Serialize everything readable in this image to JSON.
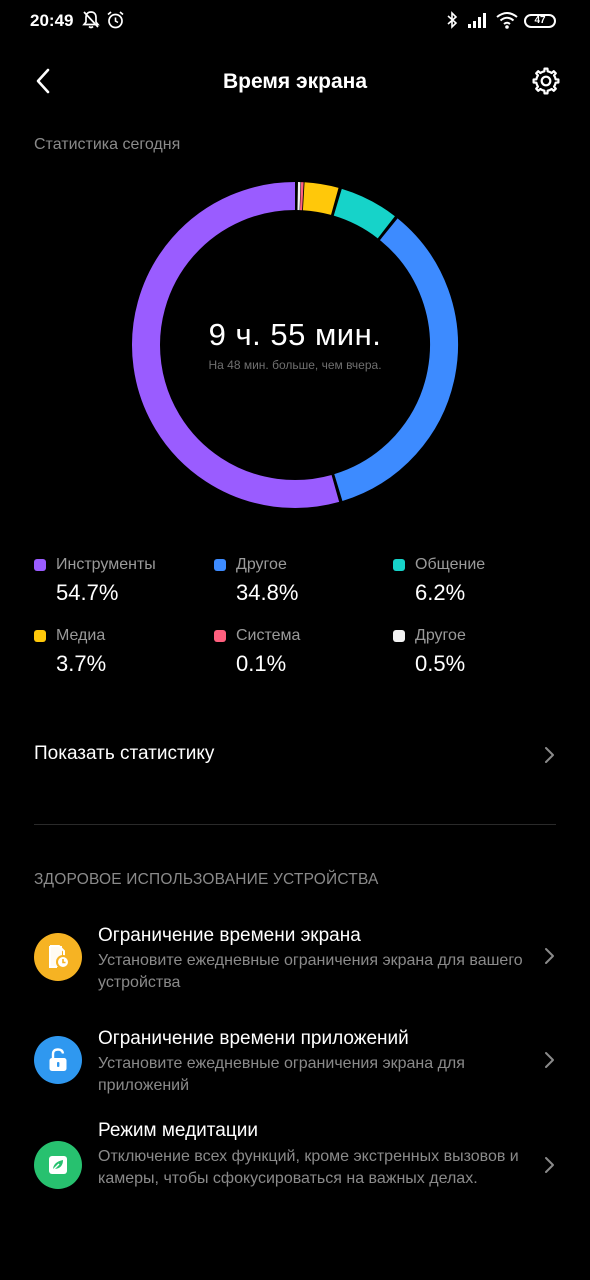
{
  "status_bar": {
    "time": "20:49",
    "icons": [
      "bell-off-icon",
      "alarm-icon",
      "bluetooth-icon",
      "signal-icon",
      "wifi-icon"
    ],
    "battery": "47"
  },
  "header": {
    "title": "Время экрана",
    "back_icon": "back-arrow-icon",
    "settings_icon": "gear-icon"
  },
  "stats": {
    "section_label": "Статистика сегодня",
    "total": "9 ч. 55 мин.",
    "comparison": "На 48 мин. больше, чем вчера."
  },
  "chart_data": {
    "type": "pie",
    "categories": [
      "Инструменты",
      "Другое",
      "Общение",
      "Медиа",
      "Система",
      "Другое"
    ],
    "values": [
      54.7,
      34.8,
      6.2,
      3.7,
      0.1,
      0.5
    ],
    "colors": [
      "#9a5cff",
      "#3d8bff",
      "#16d3c9",
      "#ffc80a",
      "#ff5f7e",
      "#f2f2f2"
    ],
    "unit": "%"
  },
  "legend": [
    {
      "label": "Инструменты",
      "value": "54.7%",
      "color": "#9a5cff"
    },
    {
      "label": "Другое",
      "value": "34.8%",
      "color": "#3d8bff"
    },
    {
      "label": "Общение",
      "value": "6.2%",
      "color": "#16d3c9"
    },
    {
      "label": "Медиа",
      "value": "3.7%",
      "color": "#ffc80a"
    },
    {
      "label": "Система",
      "value": "0.1%",
      "color": "#ff5f7e"
    },
    {
      "label": "Другое",
      "value": "0.5%",
      "color": "#f2f2f2"
    }
  ],
  "show_stats": {
    "label": "Показать статистику"
  },
  "health": {
    "section_label": "ЗДОРОВОЕ ИСПОЛЬЗОВАНИЕ УСТРОЙСТВА",
    "items": [
      {
        "title": "Ограничение времени экрана",
        "desc": "Установите ежедневные ограничения экрана для вашего устройства",
        "icon": "screen-time-limit-icon",
        "color": "#f6b323"
      },
      {
        "title": "Ограничение времени приложений",
        "desc": "Установите ежедневные ограничения экрана для приложений",
        "icon": "app-lock-icon",
        "color": "#2f98f0"
      },
      {
        "title": "Режим медитации",
        "desc": "Отключение всех функций, кроме экстренных вызовов и камеры, чтобы сфокусироваться на важных делах.",
        "icon": "leaf-icon",
        "color": "#27c16f"
      }
    ]
  }
}
